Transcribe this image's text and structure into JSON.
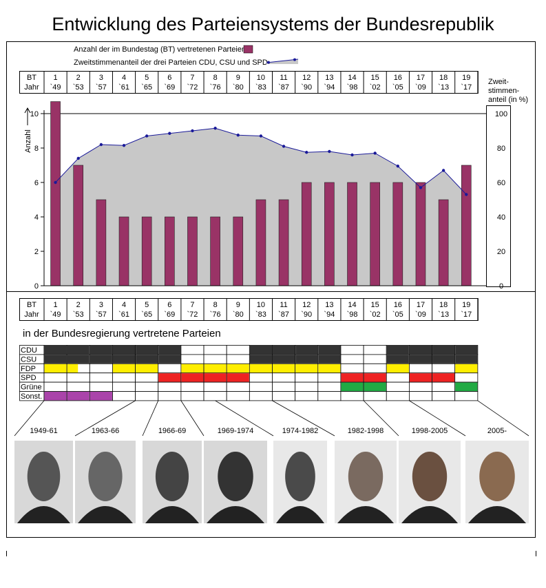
{
  "title": "Entwicklung des Parteiensystems der Bundesrepublik",
  "legend": {
    "bars_label": "Anzahl der im Bundestag (BT) vertretenen Parteien",
    "line_label": "Zweitstimmenanteil der drei Parteien CDU, CSU und SPD"
  },
  "header": {
    "bt_label": "BT",
    "jahr_label": "Jahr",
    "bt": [
      "1",
      "2",
      "3",
      "4",
      "5",
      "6",
      "7",
      "8",
      "9",
      "10",
      "11",
      "12",
      "13",
      "14",
      "15",
      "16",
      "17",
      "18",
      "19"
    ],
    "years": [
      "`49",
      "`53",
      "`57",
      "`61",
      "`65",
      "`69",
      "`72",
      "`76",
      "`80",
      "`83",
      "`87",
      "`90",
      "`94",
      "`98",
      "`02",
      "`05",
      "`09",
      "`13",
      "`17"
    ]
  },
  "right_axis_label": [
    "Zweit-",
    "stimmen-",
    "anteil (in %)"
  ],
  "left_axis_label": "Anzahl",
  "chart_data": {
    "type": "bar",
    "categories": [
      "`49",
      "`53",
      "`57",
      "`61",
      "`65",
      "`69",
      "`72",
      "`76",
      "`80",
      "`83",
      "`87",
      "`90",
      "`94",
      "`98",
      "`02",
      "`05",
      "`09",
      "`13",
      "`17"
    ],
    "series": [
      {
        "name": "Anzahl der im Bundestag (BT) vertretenen Parteien",
        "type": "bar",
        "axis": "left",
        "values": [
          10.7,
          7,
          5,
          4,
          4,
          4,
          4,
          4,
          4,
          5,
          5,
          6,
          6,
          6,
          6,
          6,
          6,
          5,
          7
        ]
      },
      {
        "name": "Zweitstimmenanteil der drei Parteien CDU, CSU und SPD",
        "type": "area",
        "axis": "right",
        "values": [
          60,
          74,
          82,
          81.5,
          87,
          88.5,
          90,
          91.5,
          87.5,
          87,
          81,
          77.5,
          78,
          76,
          77,
          69.5,
          57,
          67,
          53
        ]
      }
    ],
    "left_ylim": [
      0,
      10
    ],
    "left_ticks": [
      0,
      2,
      4,
      6,
      8,
      10
    ],
    "right_ylim": [
      0,
      100
    ],
    "right_ticks": [
      0,
      20,
      40,
      60,
      80,
      100
    ],
    "colors": {
      "bar": "#993366",
      "area": "#c8c8c8",
      "line": "#1a1a99"
    }
  },
  "government": {
    "title": "in der Bundesregierung vertretene Parteien",
    "parties": [
      {
        "name": "CDU",
        "color": "#333333",
        "cells": [
          1,
          1,
          1,
          1,
          1,
          1,
          0,
          0,
          0,
          1,
          1,
          1,
          1,
          0,
          0,
          1,
          1,
          1,
          1
        ]
      },
      {
        "name": "CSU",
        "color": "#333333",
        "cells": [
          1,
          1,
          1,
          1,
          1,
          1,
          0,
          0,
          0,
          1,
          1,
          1,
          1,
          0,
          0,
          1,
          1,
          1,
          1
        ]
      },
      {
        "name": "FDP",
        "color": "#ffee00",
        "cells": [
          1,
          0.5,
          0,
          1,
          1,
          0,
          1,
          1,
          1,
          1,
          1,
          1,
          1,
          0,
          0,
          1,
          0,
          0,
          1
        ]
      },
      {
        "name": "SPD",
        "color": "#ee2222",
        "cells": [
          0,
          0,
          0,
          0,
          0,
          1,
          1,
          1,
          1,
          0,
          0,
          0,
          0,
          1,
          1,
          0,
          1,
          1,
          0
        ]
      },
      {
        "name": "Grüne",
        "color": "#22aa44",
        "cells": [
          0,
          0,
          0,
          0,
          0,
          0,
          0,
          0,
          0,
          0,
          0,
          0,
          0,
          1,
          1,
          0,
          0,
          0,
          1
        ]
      },
      {
        "name": "Sonst.",
        "color": "#aa44aa",
        "cells": [
          1,
          1,
          1,
          0,
          0,
          0,
          0,
          0,
          0,
          0,
          0,
          0,
          0,
          0,
          0,
          0,
          0,
          0,
          0
        ]
      }
    ]
  },
  "chancellors": [
    {
      "period": "1949-61",
      "from": 0,
      "to": 4
    },
    {
      "period": "1963-66",
      "from": 4,
      "to": 5
    },
    {
      "period": "1966-69",
      "from": 5,
      "to": 6
    },
    {
      "period": "1969-1974",
      "from": 6,
      "to": 7.5
    },
    {
      "period": "1974-1982",
      "from": 7.5,
      "to": 10
    },
    {
      "period": "1982-1998",
      "from": 10,
      "to": 14
    },
    {
      "period": "1998-2005",
      "from": 14,
      "to": 16
    },
    {
      "period": "2005-",
      "from": 16,
      "to": 19
    }
  ]
}
